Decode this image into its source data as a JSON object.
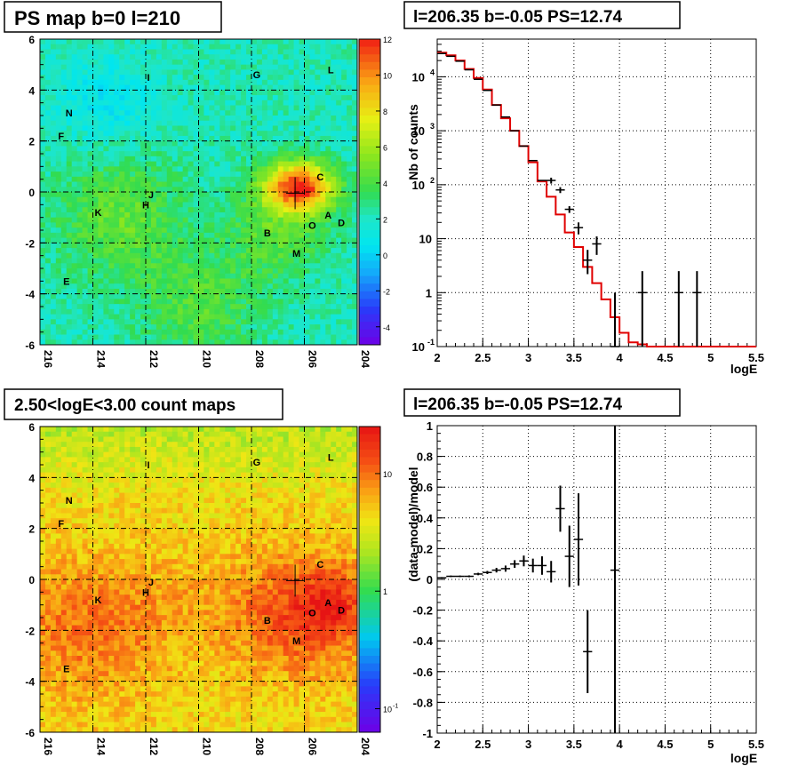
{
  "panels": {
    "top_left": {
      "title": "PS map b=0 l=210",
      "colorbar_ticks": [
        "12",
        "10",
        "8",
        "6",
        "4",
        "2",
        "0",
        "-2",
        "-4"
      ]
    },
    "top_right": {
      "title": "l=206.35 b=-0.05 PS=12.74"
    },
    "bottom_left": {
      "title": "2.50<logE<3.00 count maps",
      "colorbar_ticks": [
        "10",
        "1",
        "10",
        "-1"
      ]
    },
    "bottom_right": {
      "title": "l=206.35 b=-0.05 PS=12.74"
    }
  },
  "map_axes": {
    "x_ticks": [
      "216",
      "214",
      "212",
      "210",
      "208",
      "206",
      "204"
    ],
    "y_ticks": [
      "6",
      "4",
      "2",
      "0",
      "-2",
      "-4",
      "-6"
    ]
  },
  "source_labels": [
    {
      "id": "I"
    },
    {
      "id": "G"
    },
    {
      "id": "L"
    },
    {
      "id": "N"
    },
    {
      "id": "F"
    },
    {
      "id": "J"
    },
    {
      "id": "H"
    },
    {
      "id": "K"
    },
    {
      "id": "C"
    },
    {
      "id": "A"
    },
    {
      "id": "D"
    },
    {
      "id": "O"
    },
    {
      "id": "B"
    },
    {
      "id": "M"
    },
    {
      "id": "E"
    }
  ],
  "chart_data": [
    {
      "type": "heatmap",
      "title": "PS map b=0 l=210",
      "xlabel": "",
      "ylabel": "",
      "xlim": [
        216,
        204
      ],
      "ylim": [
        -6,
        6
      ],
      "colorbar_range": [
        -5,
        12
      ],
      "x_ticks": [
        216,
        214,
        212,
        210,
        208,
        206,
        204
      ],
      "y_ticks": [
        6,
        4,
        2,
        0,
        -2,
        -4,
        -6
      ],
      "sources": [
        {
          "id": "I",
          "l": 211.9,
          "b": 4.5
        },
        {
          "id": "G",
          "l": 207.8,
          "b": 4.6
        },
        {
          "id": "L",
          "l": 205.0,
          "b": 4.8
        },
        {
          "id": "N",
          "l": 214.9,
          "b": 3.1
        },
        {
          "id": "F",
          "l": 215.2,
          "b": 2.2
        },
        {
          "id": "J",
          "l": 211.8,
          "b": -0.1
        },
        {
          "id": "H",
          "l": 212.0,
          "b": -0.5
        },
        {
          "id": "K",
          "l": 213.8,
          "b": -0.8
        },
        {
          "id": "C",
          "l": 205.4,
          "b": 0.6
        },
        {
          "id": "A",
          "l": 205.1,
          "b": -0.9
        },
        {
          "id": "D",
          "l": 204.6,
          "b": -1.2
        },
        {
          "id": "O",
          "l": 205.7,
          "b": -1.3
        },
        {
          "id": "B",
          "l": 207.4,
          "b": -1.6
        },
        {
          "id": "M",
          "l": 206.3,
          "b": -2.4
        },
        {
          "id": "E",
          "l": 215.0,
          "b": -3.5
        }
      ],
      "marker": {
        "l": 206.35,
        "b": -0.05
      }
    },
    {
      "type": "line",
      "title": "l=206.35 b=-0.05 PS=12.74",
      "xlabel": "logE",
      "ylabel": "Nb of counts",
      "xlim": [
        2,
        5.5
      ],
      "ylim": [
        0.1,
        50000
      ],
      "yscale": "log",
      "x_ticks": [
        2,
        2.5,
        3,
        3.5,
        4,
        4.5,
        5,
        5.5
      ],
      "y_ticks": [
        "10^{-1}",
        "1",
        "10",
        "10^{2}",
        "10^{3}",
        "10^{4}"
      ],
      "grid": true,
      "series": [
        {
          "role": "model",
          "color": "#e00000",
          "edges": [
            2.0,
            2.1,
            2.2,
            2.3,
            2.4,
            2.5,
            2.6,
            2.7,
            2.8,
            2.9,
            3.0,
            3.1,
            3.2,
            3.3,
            3.4,
            3.5,
            3.6,
            3.7,
            3.8,
            3.9,
            4.0,
            4.1,
            4.2,
            4.3,
            4.4,
            5.5
          ],
          "values": [
            28000,
            25000,
            20000,
            14000,
            9500,
            5800,
            3000,
            1700,
            1000,
            520,
            260,
            115,
            60,
            28,
            13,
            7,
            3,
            1.5,
            0.75,
            0.35,
            0.18,
            0.12,
            0.11,
            0.1,
            0.1
          ]
        },
        {
          "role": "data",
          "color": "#000000",
          "points": [
            {
              "x": 2.05,
              "y": 27000
            },
            {
              "x": 2.15,
              "y": 24000
            },
            {
              "x": 2.25,
              "y": 19500
            },
            {
              "x": 2.35,
              "y": 13500
            },
            {
              "x": 2.45,
              "y": 9000
            },
            {
              "x": 2.55,
              "y": 5600
            },
            {
              "x": 2.65,
              "y": 3000
            },
            {
              "x": 2.75,
              "y": 1800
            },
            {
              "x": 2.85,
              "y": 1000
            },
            {
              "x": 2.95,
              "y": 520
            },
            {
              "x": 3.05,
              "y": 280
            },
            {
              "x": 3.15,
              "y": 120
            },
            {
              "x": 3.25,
              "y": 120,
              "lo": 105,
              "hi": 135
            },
            {
              "x": 3.35,
              "y": 80,
              "lo": 70,
              "hi": 90
            },
            {
              "x": 3.45,
              "y": 35,
              "lo": 30,
              "hi": 40
            },
            {
              "x": 3.55,
              "y": 16,
              "lo": 12,
              "hi": 20
            },
            {
              "x": 3.65,
              "y": 4,
              "lo": 2.2,
              "hi": 6.2
            },
            {
              "x": 3.75,
              "y": 8,
              "lo": 5,
              "hi": 11
            },
            {
              "x": 4.25,
              "y": 1,
              "lo": 0.1,
              "hi": 2.5
            },
            {
              "x": 4.65,
              "y": 1,
              "lo": 0.1,
              "hi": 2.5
            },
            {
              "x": 4.85,
              "y": 1,
              "lo": 0.1,
              "hi": 2.5
            },
            {
              "x": 3.95,
              "y": 0.1,
              "lo": 0.1,
              "hi": 1
            }
          ]
        }
      ]
    },
    {
      "type": "heatmap",
      "title": "2.50<logE<3.00 count maps",
      "xlabel": "",
      "ylabel": "",
      "xlim": [
        216,
        204
      ],
      "ylim": [
        -6,
        6
      ],
      "colorbar_scale": "log",
      "x_ticks": [
        216,
        214,
        212,
        210,
        208,
        206,
        204
      ],
      "y_ticks": [
        6,
        4,
        2,
        0,
        -2,
        -4,
        -6
      ]
    },
    {
      "type": "scatter",
      "title": "l=206.35 b=-0.05 PS=12.74",
      "xlabel": "logE",
      "ylabel": "(data-model)/model",
      "xlim": [
        2,
        5.5
      ],
      "ylim": [
        -1,
        1
      ],
      "x_ticks": [
        2,
        2.5,
        3,
        3.5,
        4,
        4.5,
        5,
        5.5
      ],
      "y_ticks": [
        1,
        0.8,
        0.6,
        0.4,
        0.2,
        0,
        -0.2,
        -0.4,
        -0.6,
        -0.8,
        -1
      ],
      "grid": true,
      "points": [
        {
          "x": 2.05,
          "y": 0.01,
          "err": 0.005
        },
        {
          "x": 2.15,
          "y": 0.02,
          "err": 0.005
        },
        {
          "x": 2.25,
          "y": 0.02,
          "err": 0.005
        },
        {
          "x": 2.35,
          "y": 0.02,
          "err": 0.006
        },
        {
          "x": 2.45,
          "y": 0.035,
          "err": 0.008
        },
        {
          "x": 2.55,
          "y": 0.045,
          "err": 0.01
        },
        {
          "x": 2.65,
          "y": 0.06,
          "err": 0.015
        },
        {
          "x": 2.75,
          "y": 0.07,
          "err": 0.02
        },
        {
          "x": 2.85,
          "y": 0.1,
          "err": 0.025
        },
        {
          "x": 2.95,
          "y": 0.12,
          "err": 0.035
        },
        {
          "x": 3.05,
          "y": 0.09,
          "err": 0.045
        },
        {
          "x": 3.15,
          "y": 0.09,
          "err": 0.06
        },
        {
          "x": 3.25,
          "y": 0.05,
          "err": 0.07
        },
        {
          "x": 3.35,
          "y": 0.46,
          "err": 0.15
        },
        {
          "x": 3.45,
          "y": 0.15,
          "err": 0.2
        },
        {
          "x": 3.55,
          "y": 0.26,
          "err": 0.3
        },
        {
          "x": 3.65,
          "y": -0.47,
          "err": 0.27
        },
        {
          "x": 3.95,
          "y": 0.06,
          "err": 1.06
        }
      ]
    }
  ],
  "colors": {
    "model_line": "#e00000",
    "data_marker": "#000000",
    "grid": "#000000"
  }
}
